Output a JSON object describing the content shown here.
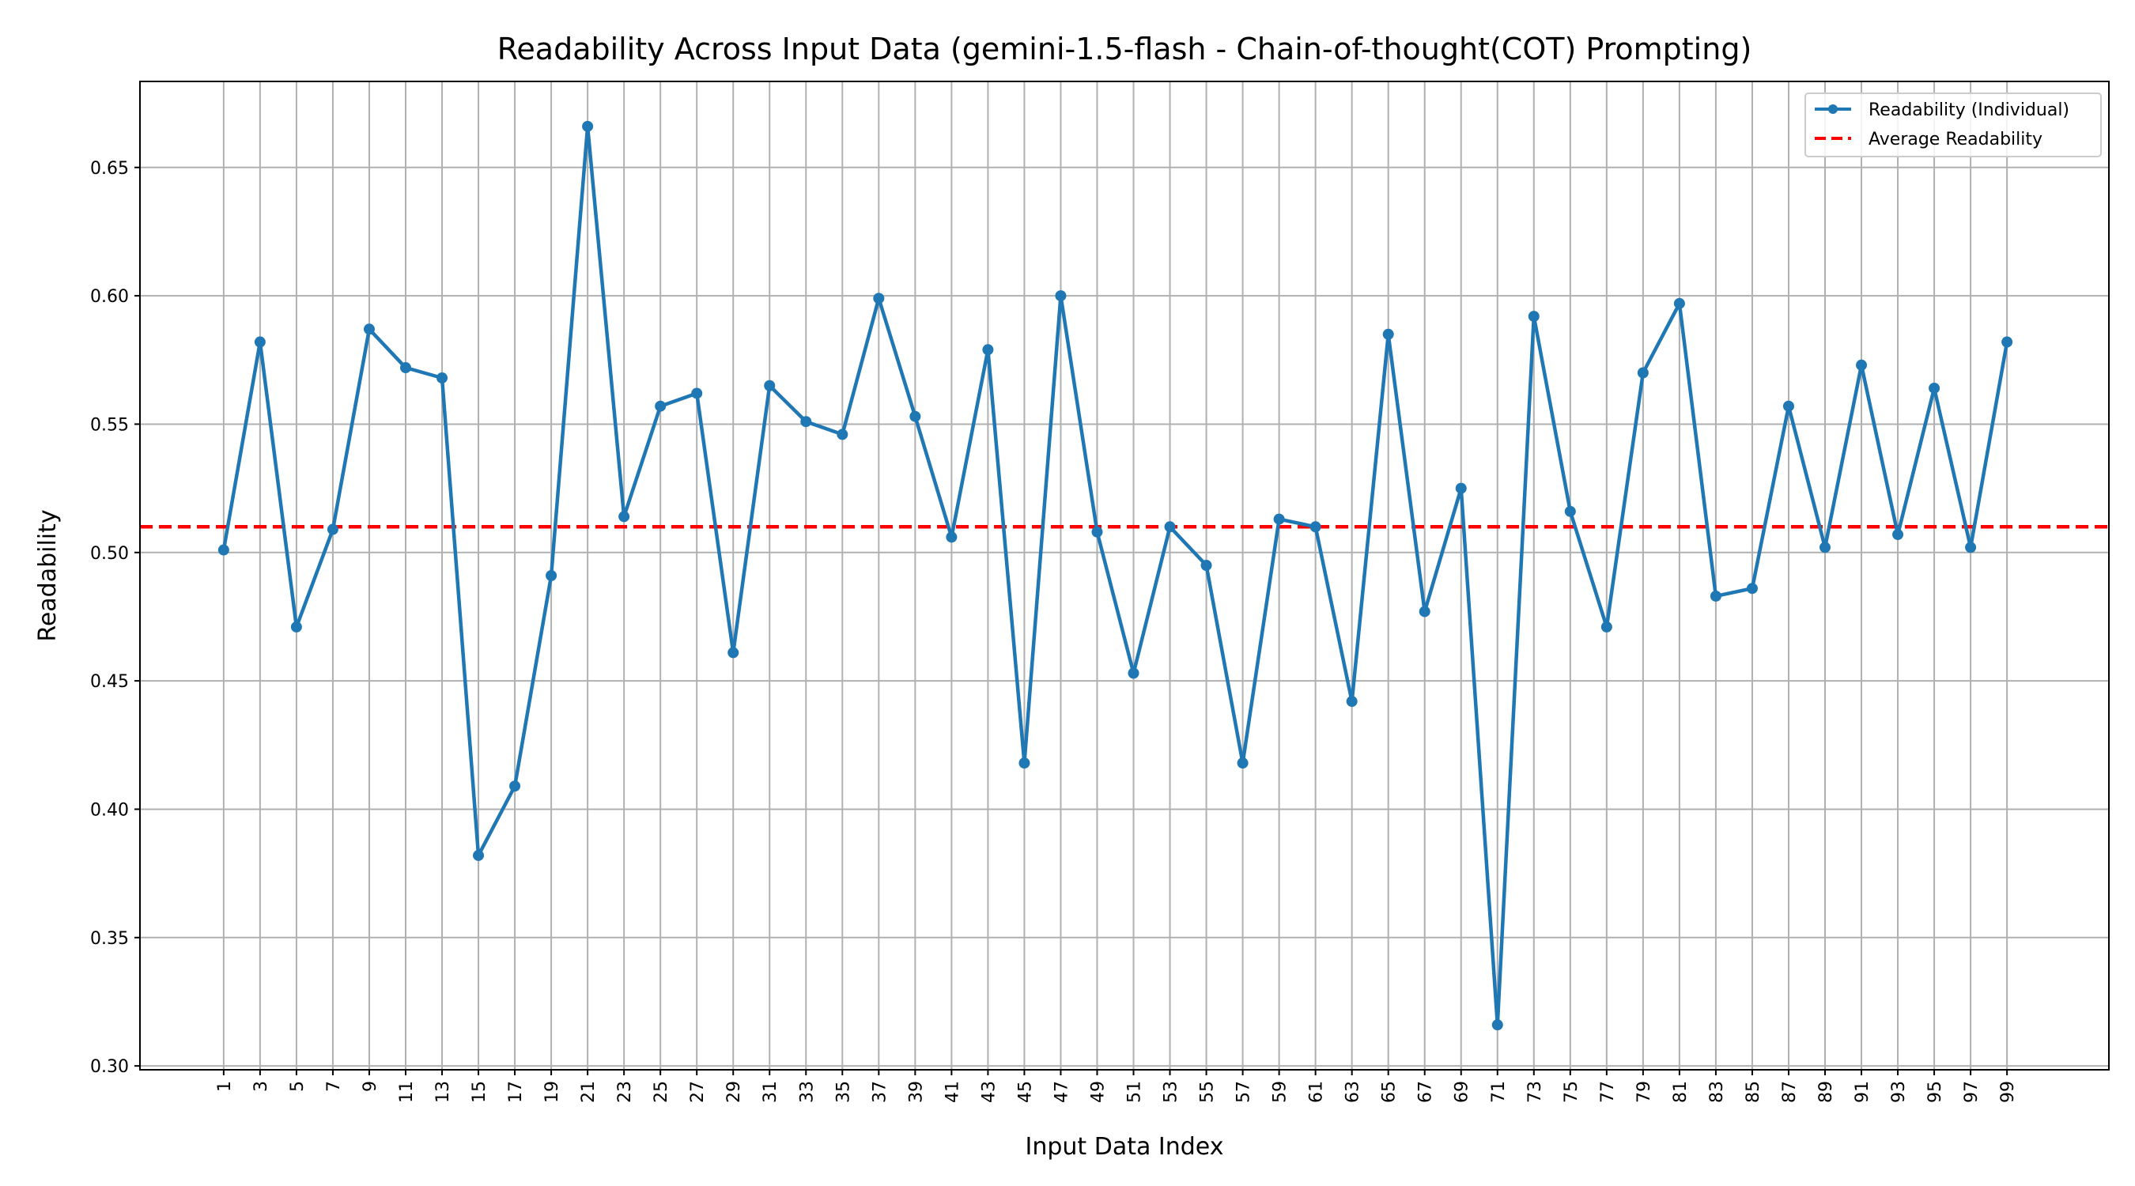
{
  "chart_data": {
    "type": "line",
    "title": "Readability Across Input Data (gemini-1.5-flash - Chain-of-thought(COT) Prompting)",
    "xlabel": "Input Data Index",
    "ylabel": "Readability",
    "x": [
      1,
      3,
      5,
      7,
      9,
      11,
      13,
      15,
      17,
      19,
      21,
      23,
      25,
      27,
      29,
      31,
      33,
      35,
      37,
      39,
      41,
      43,
      45,
      47,
      49,
      51,
      53,
      55,
      57,
      59,
      61,
      63,
      65,
      67,
      69,
      71,
      73,
      75,
      77,
      79,
      81,
      83,
      85,
      87,
      89,
      91,
      93,
      95,
      97,
      99
    ],
    "xticks": [
      "1",
      "3",
      "5",
      "7",
      "9",
      "11",
      "13",
      "15",
      "17",
      "19",
      "21",
      "23",
      "25",
      "27",
      "29",
      "31",
      "33",
      "35",
      "37",
      "39",
      "41",
      "43",
      "45",
      "47",
      "49",
      "51",
      "53",
      "55",
      "57",
      "59",
      "61",
      "63",
      "65",
      "67",
      "69",
      "71",
      "73",
      "75",
      "77",
      "79",
      "81",
      "83",
      "85",
      "87",
      "89",
      "91",
      "93",
      "95",
      "97",
      "99"
    ],
    "yticks": [
      "0.30",
      "0.35",
      "0.40",
      "0.45",
      "0.50",
      "0.55",
      "0.60",
      "0.65"
    ],
    "xlim": [
      -3.6,
      104.6
    ],
    "ylim": [
      0.2985,
      0.6835
    ],
    "grid": true,
    "legend_position": "top-right",
    "series": [
      {
        "name": "Readability (Individual)",
        "color": "#1f77b4",
        "marker": "circle",
        "values": [
          0.501,
          0.582,
          0.471,
          0.509,
          0.587,
          0.572,
          0.568,
          0.382,
          0.409,
          0.491,
          0.666,
          0.514,
          0.557,
          0.562,
          0.461,
          0.565,
          0.551,
          0.546,
          0.599,
          0.553,
          0.506,
          0.579,
          0.418,
          0.6,
          0.508,
          0.453,
          0.51,
          0.495,
          0.418,
          0.513,
          0.51,
          0.442,
          0.585,
          0.477,
          0.525,
          0.316,
          0.592,
          0.516,
          0.471,
          0.57,
          0.597,
          0.483,
          0.486,
          0.557,
          0.502,
          0.573,
          0.507,
          0.564,
          0.502,
          0.582
        ]
      }
    ],
    "average": {
      "name": "Average Readability",
      "color": "#ff0000",
      "style": "dashed",
      "value": 0.51
    }
  }
}
